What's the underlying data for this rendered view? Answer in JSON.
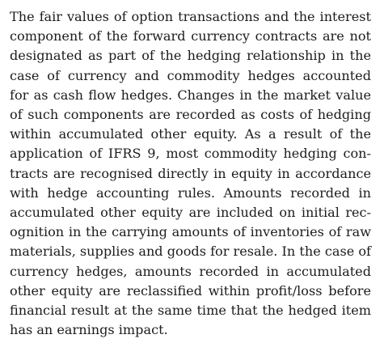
{
  "document": {
    "paragraph_lines": [
      "The fair values of option transactions and the interest",
      "component of the forward currency contracts are not",
      "designated as part of the hedging relationship in the",
      "case of currency and commodity hedges accounted",
      "for as cash flow hedges. Changes in the market value",
      "of such components are recorded as costs of hedging",
      "within accumulated other equity. As a result of the",
      "application of IFRS 9, most commodity hedging con-",
      "tracts are recognised directly in equity in accordance",
      "with hedge accounting rules. Amounts recorded in",
      "accumulated other equity are included on initial rec-",
      "ognition in the carrying amounts of inventories of raw",
      "materials, supplies and goods for resale. In the case of",
      "currency hedges, amounts recorded in accumulated",
      "other equity are reclassified within profit/loss before",
      "financial result at the same time that the hedged item",
      "has an earnings impact."
    ]
  }
}
